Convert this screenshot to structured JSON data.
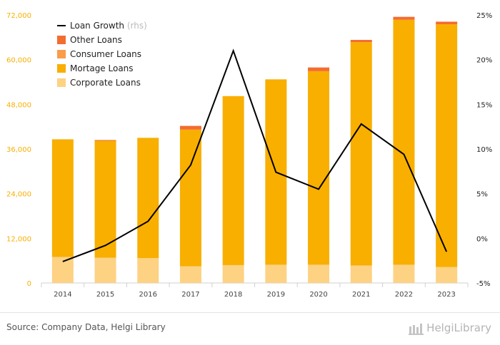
{
  "chart_data": {
    "type": "bar",
    "stacked": true,
    "categories": [
      "2014",
      "2015",
      "2016",
      "2017",
      "2018",
      "2019",
      "2020",
      "2021",
      "2022",
      "2023"
    ],
    "series": [
      {
        "name": "Corporate Loans",
        "color": "#fdd283",
        "values": [
          7000,
          6800,
          6700,
          4500,
          4800,
          4900,
          4900,
          4700,
          4900,
          4300
        ]
      },
      {
        "name": "Mortage Loans",
        "color": "#f8af00",
        "values": [
          31600,
          31400,
          32300,
          36700,
          45400,
          49800,
          52000,
          60000,
          65800,
          65200
        ]
      },
      {
        "name": "Consumer Loans",
        "color": "#f99d4a",
        "values": [
          0,
          0,
          0,
          0,
          0,
          0,
          0,
          0,
          0,
          0
        ]
      },
      {
        "name": "Other Loans",
        "color": "#f26d30",
        "values": [
          0,
          200,
          0,
          1000,
          0,
          0,
          1000,
          600,
          800,
          700
        ]
      }
    ],
    "line": {
      "name": "Loan Growth",
      "suffix": "(rhs)",
      "color": "#000000",
      "values": [
        -2.6,
        -0.8,
        1.9,
        8.2,
        21.0,
        7.4,
        5.5,
        12.8,
        9.4,
        -1.5
      ]
    },
    "y_left": {
      "min": 0,
      "max": 72000,
      "ticks": [
        "0",
        "12,000",
        "24,000",
        "36,000",
        "48,000",
        "60,000",
        "72,000"
      ],
      "tick_values": [
        0,
        12000,
        24000,
        36000,
        48000,
        60000,
        72000
      ],
      "color": "#f8af00"
    },
    "y_right": {
      "min": -5,
      "max": 25,
      "ticks": [
        "-5%",
        "0%",
        "5%",
        "10%",
        "15%",
        "20%",
        "25%"
      ],
      "tick_values": [
        -5,
        0,
        5,
        10,
        15,
        20,
        25
      ]
    },
    "grid": false,
    "legend": "top-left"
  },
  "footer": {
    "source": "Source: Company Data, Helgi Library",
    "brand": "HelgiLibrary"
  }
}
